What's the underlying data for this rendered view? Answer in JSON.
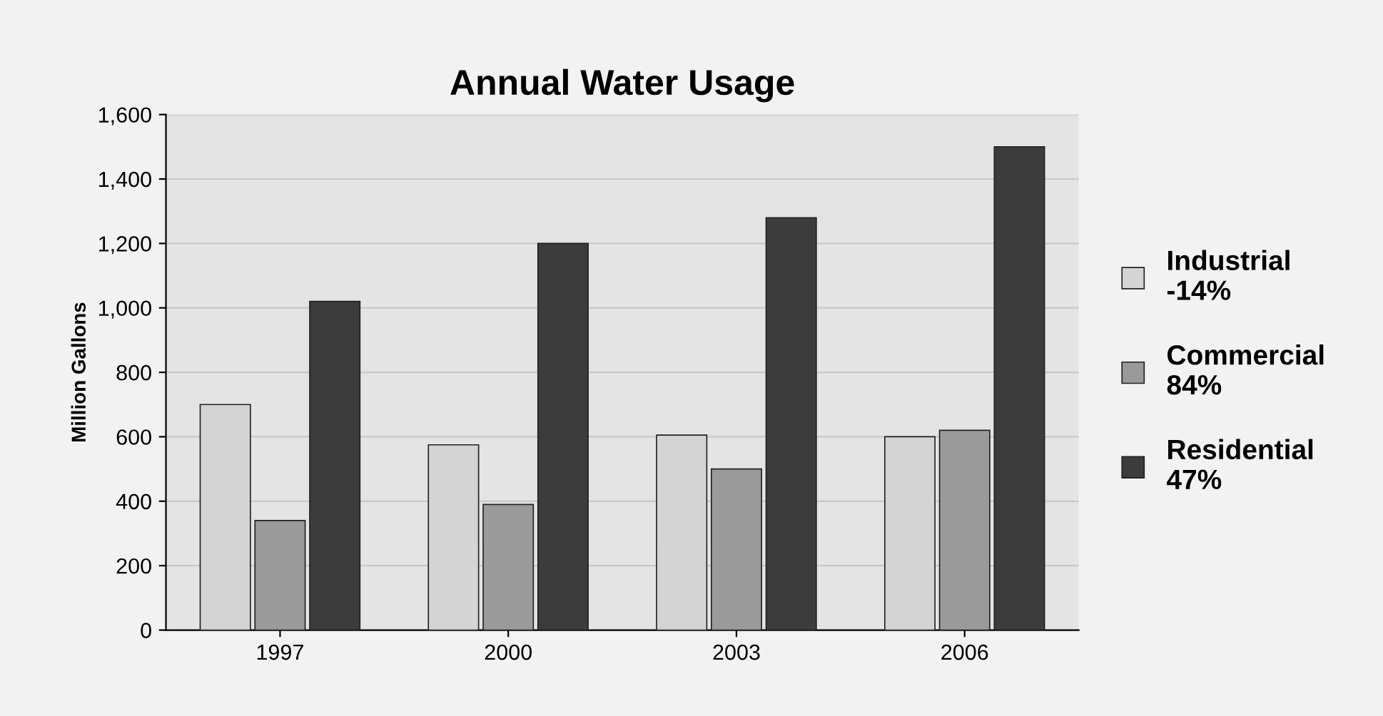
{
  "chart_data": {
    "type": "bar",
    "title": "Annual Water Usage",
    "ylabel": "Million Gallons",
    "categories": [
      "1997",
      "2000",
      "2003",
      "2006"
    ],
    "series": [
      {
        "name": "Industrial\n-14%",
        "color": "#d4d4d4",
        "values": [
          700,
          575,
          605,
          600
        ]
      },
      {
        "name": "Commercial\n84%",
        "color": "#9a9a9a",
        "values": [
          340,
          390,
          500,
          620
        ]
      },
      {
        "name": "Residential\n47%",
        "color": "#3c3c3c",
        "values": [
          1020,
          1200,
          1280,
          1500
        ]
      }
    ],
    "ylim": [
      0,
      1600
    ],
    "yticks": [
      {
        "value": 0,
        "label": "0"
      },
      {
        "value": 200,
        "label": "200"
      },
      {
        "value": 400,
        "label": "400"
      },
      {
        "value": 600,
        "label": "600"
      },
      {
        "value": 800,
        "label": "800"
      },
      {
        "value": 1000,
        "label": "1,000"
      },
      {
        "value": 1200,
        "label": "1,200"
      },
      {
        "value": 1400,
        "label": "1,400"
      },
      {
        "value": 1600,
        "label": "1,600"
      }
    ],
    "grid": "y",
    "legend": "right"
  }
}
